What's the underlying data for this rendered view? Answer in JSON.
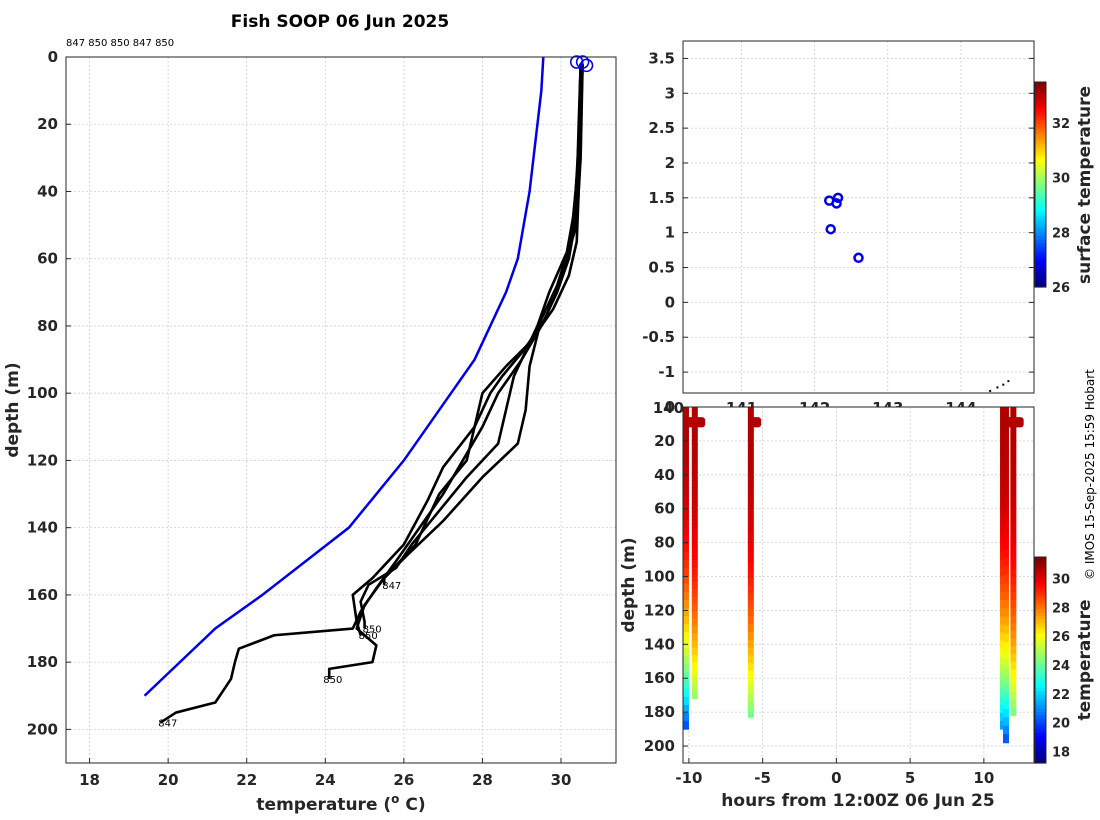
{
  "chart_data": [
    {
      "type": "line",
      "title": "Fish SOOP 06 Jun 2025",
      "profile_ids_label": "847 850 850 847 850",
      "xlabel": "temperature (",
      "xlabel_sup": "o",
      "xlabel_tail": " C)",
      "ylabel": "depth (m)",
      "xlim": [
        17.4,
        31.4
      ],
      "ylim": [
        0,
        210
      ],
      "y_reversed": true,
      "xticks": [
        18,
        20,
        22,
        24,
        26,
        28,
        30
      ],
      "yticks": [
        0,
        20,
        40,
        60,
        80,
        100,
        120,
        140,
        160,
        180,
        200
      ],
      "grid": true,
      "climatology": {
        "color": "#0000e6",
        "points": [
          [
            29.55,
            0
          ],
          [
            29.5,
            10
          ],
          [
            29.4,
            20
          ],
          [
            29.3,
            30
          ],
          [
            29.2,
            40
          ],
          [
            29.05,
            50
          ],
          [
            28.9,
            60
          ],
          [
            28.6,
            70
          ],
          [
            28.2,
            80
          ],
          [
            27.8,
            90
          ],
          [
            27.2,
            100
          ],
          [
            26.6,
            110
          ],
          [
            26.0,
            120
          ],
          [
            25.3,
            130
          ],
          [
            24.6,
            140
          ],
          [
            23.5,
            150
          ],
          [
            22.4,
            160
          ],
          [
            21.2,
            170
          ],
          [
            20.3,
            180
          ],
          [
            19.4,
            190
          ]
        ]
      },
      "profiles": [
        {
          "id": "847",
          "label_at": [
            19.8,
            198
          ],
          "points": [
            [
              30.5,
              2
            ],
            [
              30.45,
              20
            ],
            [
              30.4,
              40
            ],
            [
              30.35,
              50
            ],
            [
              30.2,
              60
            ],
            [
              29.9,
              70
            ],
            [
              29.5,
              80
            ],
            [
              29.0,
              90
            ],
            [
              28.4,
              100
            ],
            [
              28.0,
              110
            ],
            [
              27.5,
              120
            ],
            [
              27.0,
              130
            ],
            [
              26.4,
              140
            ],
            [
              25.8,
              150
            ],
            [
              25.3,
              158
            ],
            [
              24.9,
              165
            ],
            [
              24.7,
              170
            ],
            [
              22.7,
              172
            ],
            [
              21.8,
              176
            ],
            [
              21.7,
              180
            ],
            [
              21.6,
              185
            ],
            [
              21.2,
              192
            ],
            [
              20.2,
              195
            ],
            [
              19.8,
              198
            ]
          ]
        },
        {
          "id": "850",
          "label_at": [
            24.0,
            185
          ],
          "points": [
            [
              30.55,
              2
            ],
            [
              30.5,
              20
            ],
            [
              30.45,
              40
            ],
            [
              30.4,
              55
            ],
            [
              30.2,
              65
            ],
            [
              29.8,
              75
            ],
            [
              29.2,
              85
            ],
            [
              28.6,
              92
            ],
            [
              28.0,
              100
            ],
            [
              27.8,
              110
            ],
            [
              27.6,
              120
            ],
            [
              26.9,
              130
            ],
            [
              26.3,
              145
            ],
            [
              25.5,
              155
            ],
            [
              25.0,
              163
            ],
            [
              24.8,
              170
            ],
            [
              25.3,
              175
            ],
            [
              25.2,
              180
            ],
            [
              24.1,
              182
            ],
            [
              24.1,
              185
            ]
          ]
        },
        {
          "id": "850",
          "label_at": [
            25.0,
            170
          ],
          "points": [
            [
              30.5,
              2
            ],
            [
              30.45,
              25
            ],
            [
              30.35,
              45
            ],
            [
              30.15,
              58
            ],
            [
              29.7,
              70
            ],
            [
              29.4,
              80
            ],
            [
              28.8,
              95
            ],
            [
              28.6,
              105
            ],
            [
              28.4,
              115
            ],
            [
              27.6,
              125
            ],
            [
              26.9,
              135
            ],
            [
              26.2,
              145
            ],
            [
              25.8,
              152
            ],
            [
              25.1,
              157
            ],
            [
              24.9,
              162
            ],
            [
              25.0,
              168
            ],
            [
              25.0,
              170
            ]
          ]
        },
        {
          "id": "847",
          "label_at": [
            25.5,
            157
          ],
          "points": [
            [
              30.5,
              2
            ],
            [
              30.45,
              30
            ],
            [
              30.25,
              55
            ],
            [
              29.9,
              68
            ],
            [
              29.5,
              78
            ],
            [
              29.2,
              92
            ],
            [
              29.1,
              105
            ],
            [
              28.9,
              115
            ],
            [
              28.0,
              125
            ],
            [
              27.0,
              138
            ],
            [
              26.1,
              148
            ],
            [
              25.5,
              155
            ],
            [
              25.5,
              157
            ]
          ]
        },
        {
          "id": "850",
          "label_at": [
            24.9,
            172
          ],
          "points": [
            [
              30.55,
              2
            ],
            [
              30.5,
              30
            ],
            [
              30.4,
              50
            ],
            [
              30.0,
              65
            ],
            [
              29.6,
              78
            ],
            [
              29.0,
              88
            ],
            [
              28.5,
              95
            ],
            [
              28.2,
              100
            ],
            [
              27.8,
              110
            ],
            [
              27.0,
              122
            ],
            [
              26.6,
              132
            ],
            [
              26.0,
              145
            ],
            [
              25.2,
              155
            ],
            [
              24.7,
              160
            ],
            [
              24.8,
              168
            ],
            [
              24.9,
              172
            ]
          ]
        }
      ],
      "cast_marker": {
        "color": "#0000e6",
        "points": [
          [
            30.4,
            1.5
          ],
          [
            30.55,
            1.5
          ],
          [
            30.65,
            2.5
          ]
        ]
      }
    },
    {
      "type": "scatter",
      "colorbar_label": "surface temperature",
      "colorbar_range": [
        26,
        33.5
      ],
      "colorbar_ticks": [
        26,
        28,
        30,
        32
      ],
      "xlim": [
        140.2,
        145.0
      ],
      "ylim": [
        -1.3,
        3.75
      ],
      "xticks": [
        140,
        141,
        142,
        143,
        144
      ],
      "yticks": [
        3.5,
        3,
        2.5,
        2,
        1.5,
        1,
        0.5,
        0,
        -0.5,
        -1
      ],
      "ytick_labels": [
        "3.5",
        "3",
        "2.5",
        "2",
        "1.5",
        "1",
        "0.5",
        "0",
        "-0.5",
        "-1"
      ],
      "marker_color": "#0000e6",
      "points": [
        [
          142.2,
          1.46
        ],
        [
          142.3,
          1.42
        ],
        [
          142.32,
          1.5
        ],
        [
          142.22,
          1.05
        ],
        [
          142.6,
          0.64
        ]
      ],
      "coast": [
        [
          144.4,
          -1.27
        ],
        [
          144.5,
          -1.22
        ],
        [
          144.58,
          -1.18
        ],
        [
          144.65,
          -1.13
        ]
      ]
    },
    {
      "type": "heatmap",
      "xlabel": "hours from 12:00Z 06 Jun 25",
      "ylabel": "depth (m)",
      "colorbar_label": "temperature",
      "colorbar_range": [
        17.2,
        31.5
      ],
      "colorbar_ticks": [
        18,
        20,
        22,
        24,
        26,
        28,
        30
      ],
      "xlim": [
        -10.4,
        13.4
      ],
      "ylim": [
        0,
        210
      ],
      "xticks": [
        -10,
        -5,
        0,
        5,
        10
      ],
      "yticks": [
        0,
        20,
        40,
        60,
        80,
        100,
        120,
        140,
        160,
        180,
        200
      ],
      "casts": [
        {
          "hour": -10.2,
          "max_depth": 190,
          "bottom_temp": 19.8
        },
        {
          "hour": -9.6,
          "max_depth": 172,
          "bottom_temp": 24.5
        },
        {
          "hour": -5.8,
          "max_depth": 183,
          "bottom_temp": 24.0
        },
        {
          "hour": 11.3,
          "max_depth": 190,
          "bottom_temp": 21.0
        },
        {
          "hour": 11.5,
          "max_depth": 198,
          "bottom_temp": 19.9
        },
        {
          "hour": 12.0,
          "max_depth": 182,
          "bottom_temp": 24.1
        }
      ]
    }
  ],
  "credit": "© IMOS 15-Sep-2025 15:59 Hobart"
}
